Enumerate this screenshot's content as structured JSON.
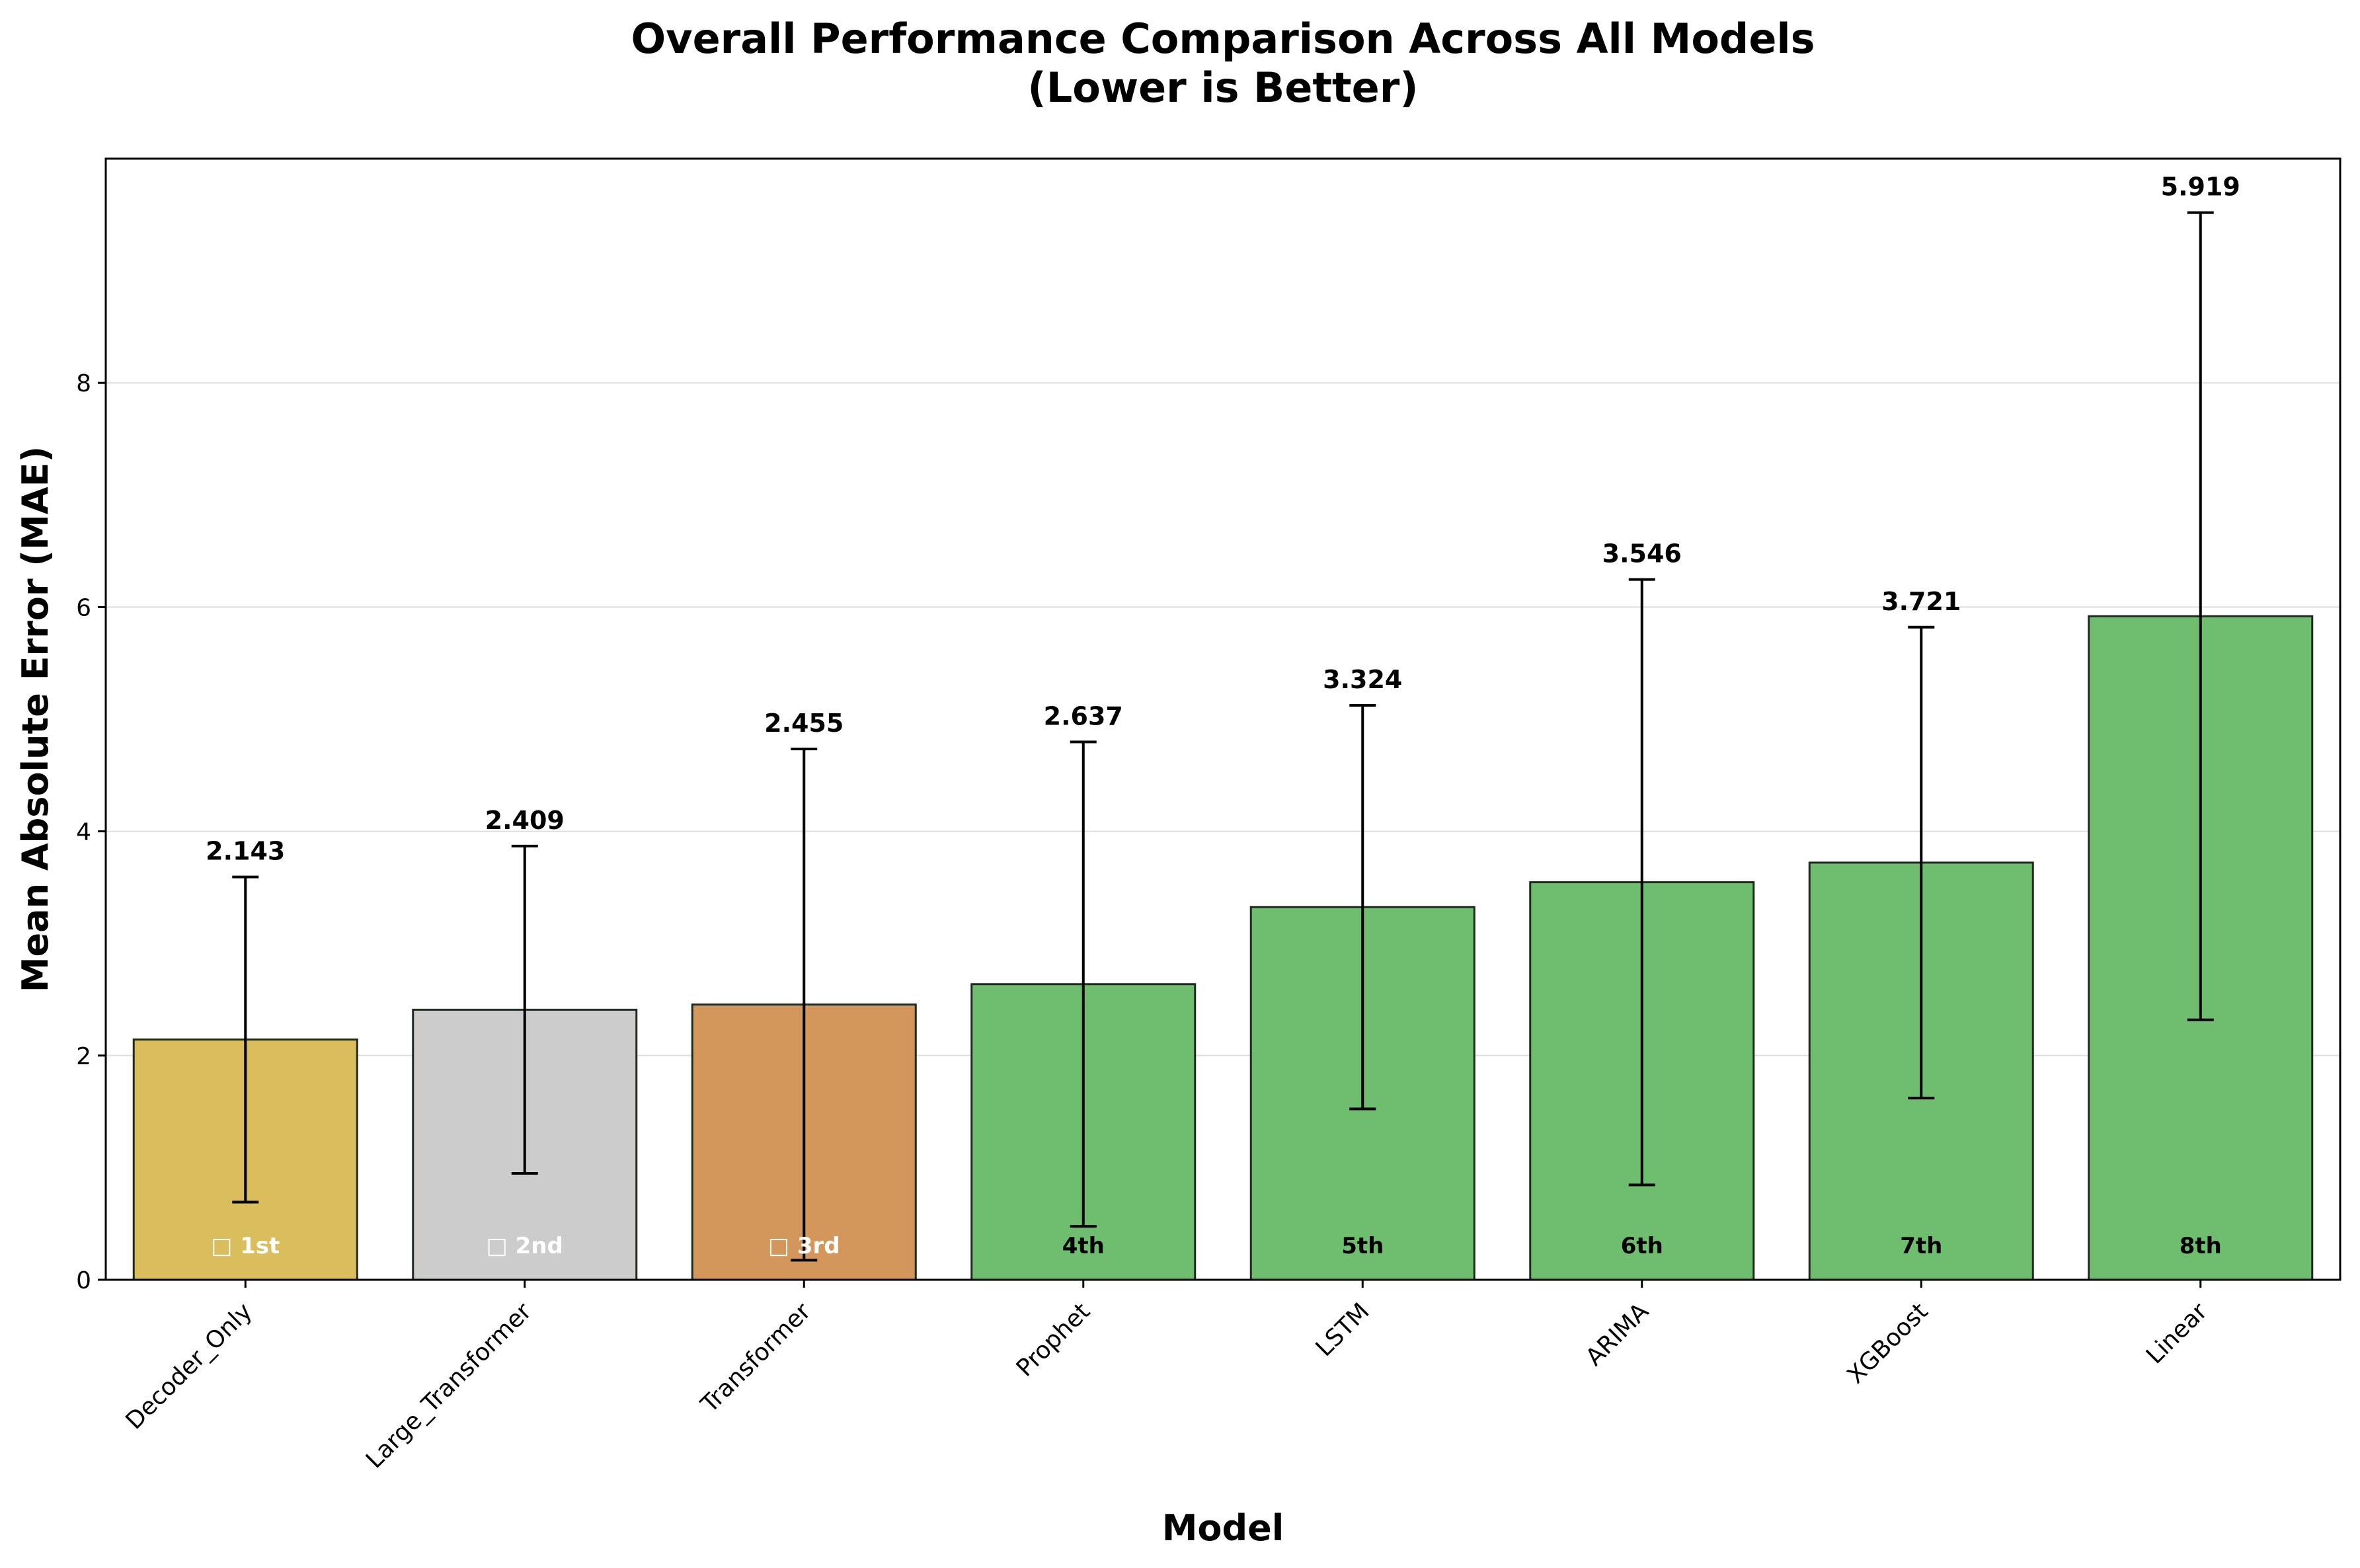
{
  "chart_data": {
    "type": "bar",
    "title": "Overall Performance Comparison Across All Models",
    "subtitle": "(Lower is Better)",
    "xlabel": "Model",
    "ylabel": "Mean Absolute Error (MAE)",
    "ylim": [
      0,
      10
    ],
    "yticks": [
      0,
      2,
      4,
      6,
      8
    ],
    "grid": true,
    "categories": [
      "Decoder_Only",
      "Large_Transformer",
      "Transformer",
      "Prophet",
      "LSTM",
      "ARIMA",
      "XGBoost",
      "Linear"
    ],
    "values": [
      2.143,
      2.409,
      2.455,
      2.637,
      3.324,
      3.546,
      3.721,
      5.919
    ],
    "value_labels": [
      "2.143",
      "2.409",
      "2.455",
      "2.637",
      "3.324",
      "3.546",
      "3.721",
      "5.919"
    ],
    "error": [
      1.45,
      1.46,
      2.28,
      2.16,
      1.8,
      2.7,
      2.1,
      3.6
    ],
    "rank_labels": [
      "□ 1st",
      "□ 2nd",
      "□ 3rd",
      "4th",
      "5th",
      "6th",
      "7th",
      "8th"
    ],
    "bar_colors": [
      "#dabd5c",
      "#cccccc",
      "#d3975c",
      "#6fbe6f",
      "#6fbe6f",
      "#6fbe6f",
      "#6fbe6f",
      "#6fbe6f"
    ],
    "rank_label_colors": [
      "#ffffff",
      "#ffffff",
      "#ffffff",
      "#000000",
      "#000000",
      "#000000",
      "#000000",
      "#000000"
    ]
  }
}
